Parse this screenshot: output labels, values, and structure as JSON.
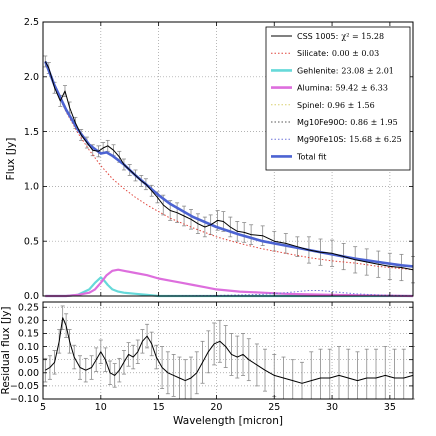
{
  "chart_data": [
    {
      "type": "line",
      "title": "",
      "xlabel": "",
      "ylabel": "Flux [Jy]",
      "xlim": [
        5,
        37
      ],
      "ylim": [
        0,
        2.5
      ],
      "xticks": [
        5,
        10,
        15,
        20,
        25,
        30,
        35
      ],
      "yticks": [
        0.0,
        0.5,
        1.0,
        1.5,
        2.0,
        2.5
      ],
      "ytick_labels": [
        "0.0",
        "0.5",
        "1.0",
        "1.5",
        "2.0",
        "2.5"
      ],
      "grid": true,
      "legend_position": "top-right",
      "legend": [
        {
          "label": "CSS 1005:",
          "value": "χ² = 15.28",
          "color": "#000000",
          "style": "solid"
        },
        {
          "label": "Silicate:",
          "value": "0.00 ± 0.03",
          "color": "#e0433a",
          "style": "dotted"
        },
        {
          "label": "Gehlenite:",
          "value": "23.08 ± 2.01",
          "color": "#66d9d9",
          "style": "solid-thick"
        },
        {
          "label": "Alumina:",
          "value": "59.42 ± 6.33",
          "color": "#dd6edd",
          "style": "solid-thick"
        },
        {
          "label": "Spinel:",
          "value": "0.96 ± 1.56",
          "color": "#d8cf6e",
          "style": "dotted"
        },
        {
          "label": "Mg10Fe90O:",
          "value": "0.86 ± 1.95",
          "color": "#555555",
          "style": "dotted"
        },
        {
          "label": "Mg90Fe10S:",
          "value": "15.68 ± 6.25",
          "color": "#6f74d9",
          "style": "dotted"
        },
        {
          "label": "Total fit",
          "value": "",
          "color": "#4c63d2",
          "style": "solid-thick"
        }
      ],
      "series": [
        {
          "name": "CSS 1005",
          "x": [
            5.2,
            5.5,
            6.0,
            6.5,
            6.9,
            7.3,
            7.8,
            8.3,
            8.8,
            9.3,
            9.8,
            10.2,
            10.6,
            11.1,
            11.6,
            12.0,
            12.5,
            13.0,
            13.5,
            13.9,
            14.4,
            14.9,
            15.4,
            16.0,
            16.6,
            17.2,
            17.8,
            18.4,
            19.0,
            19.5,
            20.1,
            20.6,
            21.2,
            21.8,
            22.4,
            23.0,
            24.0,
            25.0,
            26.0,
            27.0,
            28.0,
            29.0,
            30.0,
            31.0,
            32.0,
            33.0,
            34.0,
            35.0,
            36.0,
            37.0
          ],
          "y": [
            2.14,
            2.08,
            1.9,
            1.78,
            1.87,
            1.72,
            1.58,
            1.47,
            1.4,
            1.33,
            1.32,
            1.35,
            1.37,
            1.33,
            1.27,
            1.2,
            1.15,
            1.1,
            1.05,
            1.02,
            0.96,
            0.9,
            0.83,
            0.78,
            0.76,
            0.73,
            0.7,
            0.66,
            0.63,
            0.65,
            0.69,
            0.68,
            0.63,
            0.59,
            0.58,
            0.56,
            0.55,
            0.5,
            0.48,
            0.45,
            0.42,
            0.4,
            0.39,
            0.36,
            0.33,
            0.31,
            0.29,
            0.27,
            0.26,
            0.24
          ]
        },
        {
          "name": "Total fit",
          "x": [
            5.2,
            6.0,
            7.0,
            8.0,
            9.0,
            10.0,
            10.5,
            11.0,
            12.0,
            13.0,
            14.0,
            15.0,
            16.0,
            18.0,
            20.0,
            22.0,
            24.0,
            26.0,
            28.0,
            30.0,
            32.0,
            34.0,
            36.0,
            37.0
          ],
          "y": [
            2.14,
            1.92,
            1.7,
            1.52,
            1.38,
            1.3,
            1.31,
            1.28,
            1.2,
            1.1,
            1.01,
            0.92,
            0.84,
            0.72,
            0.63,
            0.56,
            0.5,
            0.46,
            0.42,
            0.38,
            0.34,
            0.31,
            0.28,
            0.27
          ]
        },
        {
          "name": "Silicate",
          "x": [
            5.2,
            6.0,
            7.0,
            8.0,
            9.0,
            10.0,
            11.0,
            12.0,
            13.0,
            14.0,
            15.0,
            16.0,
            18.0,
            20.0,
            22.0,
            24.0,
            26.0,
            28.0,
            30.0,
            32.0,
            34.0,
            36.0,
            37.0
          ],
          "y": [
            2.14,
            1.91,
            1.68,
            1.49,
            1.33,
            1.19,
            1.07,
            0.98,
            0.9,
            0.83,
            0.77,
            0.71,
            0.62,
            0.54,
            0.48,
            0.43,
            0.39,
            0.35,
            0.32,
            0.3,
            0.27,
            0.25,
            0.24
          ]
        },
        {
          "name": "Gehlenite",
          "x": [
            5.2,
            7.0,
            8.0,
            9.0,
            9.5,
            10.0,
            10.3,
            10.6,
            11.0,
            11.5,
            12.0,
            13.0,
            14.0,
            15.0,
            17.0,
            20.0,
            37.0
          ],
          "y": [
            0.0,
            0.0,
            0.01,
            0.06,
            0.12,
            0.17,
            0.14,
            0.1,
            0.06,
            0.04,
            0.03,
            0.02,
            0.01,
            0.0,
            0.0,
            0.0,
            0.0
          ]
        },
        {
          "name": "Alumina",
          "x": [
            5.2,
            7.0,
            8.0,
            9.0,
            9.5,
            10.0,
            10.5,
            11.0,
            11.5,
            12.0,
            13.0,
            14.0,
            15.0,
            16.0,
            17.0,
            18.0,
            19.0,
            20.0,
            21.0,
            22.0,
            24.0,
            26.0,
            30.0,
            37.0
          ],
          "y": [
            0.0,
            0.0,
            0.01,
            0.03,
            0.06,
            0.12,
            0.19,
            0.23,
            0.24,
            0.23,
            0.21,
            0.19,
            0.16,
            0.14,
            0.12,
            0.1,
            0.08,
            0.06,
            0.05,
            0.04,
            0.03,
            0.02,
            0.01,
            0.0
          ]
        },
        {
          "name": "Mg90Fe10S",
          "x": [
            5.2,
            10.0,
            15.0,
            20.0,
            22.0,
            24.0,
            26.0,
            27.0,
            28.0,
            29.0,
            30.0,
            31.0,
            32.0,
            33.0,
            34.0,
            36.0,
            37.0
          ],
          "y": [
            0.0,
            0.0,
            0.0,
            0.005,
            0.01,
            0.015,
            0.03,
            0.04,
            0.05,
            0.05,
            0.04,
            0.03,
            0.02,
            0.015,
            0.01,
            0.005,
            0.0
          ]
        }
      ]
    },
    {
      "type": "line",
      "title": "",
      "xlabel": "Wavelength [micron]",
      "ylabel": "Residual flux [Jy]",
      "xlim": [
        5,
        37
      ],
      "ylim": [
        -0.1,
        0.27
      ],
      "xticks": [
        5,
        10,
        15,
        20,
        25,
        30,
        35
      ],
      "xtick_labels": [
        "5",
        "10",
        "15",
        "20",
        "25",
        "30",
        "35"
      ],
      "yticks": [
        -0.1,
        -0.05,
        0.0,
        0.05,
        0.1,
        0.15,
        0.2,
        0.25
      ],
      "ytick_labels": [
        "−0.10",
        "−0.05",
        "0.00",
        "0.05",
        "0.10",
        "0.15",
        "0.20",
        "0.25"
      ],
      "grid": true,
      "series": [
        {
          "name": "Residual",
          "x": [
            5.2,
            5.6,
            6.0,
            6.4,
            6.7,
            7.0,
            7.3,
            7.7,
            8.2,
            8.7,
            9.2,
            9.6,
            10.0,
            10.4,
            10.8,
            11.2,
            11.6,
            12.0,
            12.4,
            12.8,
            13.2,
            13.6,
            14.0,
            14.4,
            14.8,
            15.3,
            15.8,
            16.3,
            16.8,
            17.3,
            17.8,
            18.3,
            18.8,
            19.3,
            19.8,
            20.3,
            20.8,
            21.3,
            21.8,
            22.3,
            22.8,
            23.5,
            24.2,
            25.0,
            25.8,
            26.6,
            27.4,
            28.2,
            29.0,
            29.8,
            30.6,
            31.4,
            32.2,
            33.0,
            33.8,
            34.6,
            35.4,
            36.2,
            37.0
          ],
          "y": [
            0.01,
            0.02,
            0.04,
            0.12,
            0.21,
            0.18,
            0.12,
            0.06,
            0.02,
            0.01,
            0.02,
            0.05,
            0.08,
            0.05,
            0.0,
            -0.01,
            0.01,
            0.04,
            0.07,
            0.06,
            0.08,
            0.12,
            0.14,
            0.11,
            0.06,
            0.02,
            0.0,
            -0.01,
            -0.02,
            -0.03,
            -0.02,
            0.0,
            0.04,
            0.08,
            0.11,
            0.12,
            0.1,
            0.07,
            0.06,
            0.07,
            0.05,
            0.03,
            0.01,
            -0.01,
            -0.02,
            -0.03,
            -0.04,
            -0.03,
            -0.02,
            -0.02,
            -0.01,
            -0.02,
            -0.03,
            -0.02,
            -0.02,
            -0.01,
            -0.02,
            -0.02,
            -0.01
          ]
        }
      ]
    }
  ]
}
